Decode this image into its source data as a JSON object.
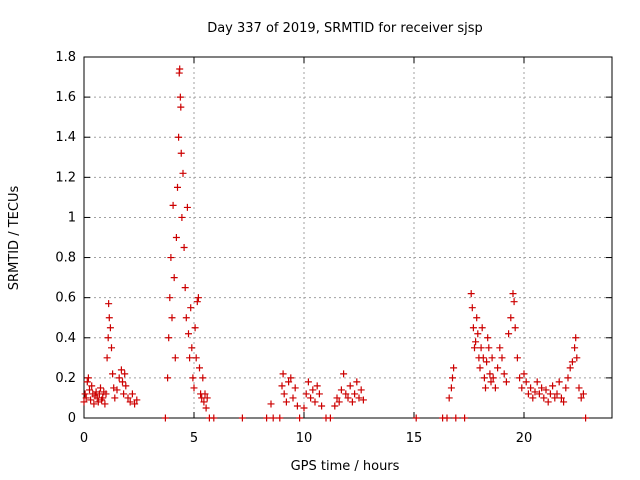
{
  "chart_data": {
    "type": "scatter",
    "title": "Day 337 of 2019, SRMTID for receiver sjsp",
    "xlabel": "GPS time / hours",
    "ylabel": "SRMTID / TECUs",
    "xlim": [
      0,
      24
    ],
    "ylim": [
      0,
      1.8
    ],
    "xticks": [
      0,
      5,
      10,
      15,
      20
    ],
    "yticks": [
      0,
      0.2,
      0.4,
      0.6,
      0.8,
      1,
      1.2,
      1.4,
      1.6,
      1.8
    ],
    "xtick_labels": [
      "0",
      "5",
      "10",
      "15",
      "20"
    ],
    "ytick_labels": [
      "0",
      "0.2",
      "0.4",
      "0.6",
      "0.8",
      "1",
      "1.2",
      "1.4",
      "1.6",
      "1.8"
    ],
    "grid": true,
    "marker": "+",
    "series": [
      {
        "name": "SRMTID",
        "color": "#cc0000",
        "points": [
          [
            0.0,
            0.08
          ],
          [
            0.05,
            0.12
          ],
          [
            0.1,
            0.1
          ],
          [
            0.15,
            0.18
          ],
          [
            0.2,
            0.2
          ],
          [
            0.25,
            0.14
          ],
          [
            0.3,
            0.09
          ],
          [
            0.35,
            0.16
          ],
          [
            0.4,
            0.12
          ],
          [
            0.45,
            0.07
          ],
          [
            0.5,
            0.11
          ],
          [
            0.55,
            0.13
          ],
          [
            0.6,
            0.1
          ],
          [
            0.65,
            0.08
          ],
          [
            0.7,
            0.12
          ],
          [
            0.75,
            0.15
          ],
          [
            0.8,
            0.09
          ],
          [
            0.85,
            0.1
          ],
          [
            0.9,
            0.13
          ],
          [
            0.95,
            0.07
          ],
          [
            1.0,
            0.12
          ],
          [
            1.05,
            0.3
          ],
          [
            1.1,
            0.4
          ],
          [
            1.12,
            0.57
          ],
          [
            1.15,
            0.5
          ],
          [
            1.2,
            0.45
          ],
          [
            1.25,
            0.35
          ],
          [
            1.3,
            0.22
          ],
          [
            1.35,
            0.15
          ],
          [
            1.4,
            0.1
          ],
          [
            1.5,
            0.14
          ],
          [
            1.6,
            0.2
          ],
          [
            1.7,
            0.24
          ],
          [
            1.75,
            0.18
          ],
          [
            1.8,
            0.12
          ],
          [
            1.85,
            0.22
          ],
          [
            1.9,
            0.16
          ],
          [
            2.0,
            0.1
          ],
          [
            2.1,
            0.08
          ],
          [
            2.2,
            0.12
          ],
          [
            2.3,
            0.07
          ],
          [
            2.4,
            0.09
          ],
          [
            3.7,
            0.0
          ],
          [
            3.8,
            0.2
          ],
          [
            3.85,
            0.4
          ],
          [
            3.9,
            0.6
          ],
          [
            3.95,
            0.8
          ],
          [
            4.0,
            0.5
          ],
          [
            4.05,
            1.06
          ],
          [
            4.1,
            0.7
          ],
          [
            4.15,
            0.3
          ],
          [
            4.2,
            0.9
          ],
          [
            4.25,
            1.15
          ],
          [
            4.3,
            1.4
          ],
          [
            4.33,
            1.72
          ],
          [
            4.35,
            1.74
          ],
          [
            4.38,
            1.6
          ],
          [
            4.4,
            1.55
          ],
          [
            4.42,
            1.32
          ],
          [
            4.45,
            1.0
          ],
          [
            4.5,
            1.22
          ],
          [
            4.55,
            0.85
          ],
          [
            4.6,
            0.65
          ],
          [
            4.65,
            0.5
          ],
          [
            4.7,
            1.05
          ],
          [
            4.75,
            0.42
          ],
          [
            4.8,
            0.3
          ],
          [
            4.85,
            0.55
          ],
          [
            4.9,
            0.35
          ],
          [
            4.95,
            0.2
          ],
          [
            5.0,
            0.15
          ],
          [
            5.05,
            0.45
          ],
          [
            5.1,
            0.3
          ],
          [
            5.15,
            0.58
          ],
          [
            5.2,
            0.6
          ],
          [
            5.25,
            0.25
          ],
          [
            5.3,
            0.12
          ],
          [
            5.35,
            0.1
          ],
          [
            5.4,
            0.2
          ],
          [
            5.45,
            0.08
          ],
          [
            5.5,
            0.12
          ],
          [
            5.55,
            0.05
          ],
          [
            5.6,
            0.1
          ],
          [
            5.7,
            0.0
          ],
          [
            5.9,
            0.0
          ],
          [
            7.2,
            0.0
          ],
          [
            8.3,
            0.0
          ],
          [
            8.5,
            0.07
          ],
          [
            8.6,
            0.0
          ],
          [
            8.9,
            0.0
          ],
          [
            9.0,
            0.16
          ],
          [
            9.05,
            0.22
          ],
          [
            9.1,
            0.12
          ],
          [
            9.2,
            0.08
          ],
          [
            9.3,
            0.18
          ],
          [
            9.4,
            0.2
          ],
          [
            9.5,
            0.1
          ],
          [
            9.6,
            0.15
          ],
          [
            9.7,
            0.06
          ],
          [
            9.8,
            0.0
          ],
          [
            10.0,
            0.05
          ],
          [
            10.1,
            0.12
          ],
          [
            10.2,
            0.18
          ],
          [
            10.3,
            0.1
          ],
          [
            10.4,
            0.14
          ],
          [
            10.5,
            0.08
          ],
          [
            10.6,
            0.16
          ],
          [
            10.7,
            0.12
          ],
          [
            10.8,
            0.06
          ],
          [
            11.0,
            0.0
          ],
          [
            11.2,
            0.0
          ],
          [
            11.4,
            0.06
          ],
          [
            11.5,
            0.1
          ],
          [
            11.6,
            0.08
          ],
          [
            11.7,
            0.14
          ],
          [
            11.8,
            0.22
          ],
          [
            11.9,
            0.12
          ],
          [
            12.0,
            0.1
          ],
          [
            12.1,
            0.16
          ],
          [
            12.2,
            0.08
          ],
          [
            12.3,
            0.12
          ],
          [
            12.4,
            0.18
          ],
          [
            12.5,
            0.1
          ],
          [
            12.6,
            0.14
          ],
          [
            12.7,
            0.09
          ],
          [
            15.1,
            0.0
          ],
          [
            16.3,
            0.0
          ],
          [
            16.5,
            0.0
          ],
          [
            16.6,
            0.1
          ],
          [
            16.7,
            0.15
          ],
          [
            16.75,
            0.2
          ],
          [
            16.8,
            0.25
          ],
          [
            16.9,
            0.0
          ],
          [
            17.3,
            0.0
          ],
          [
            17.6,
            0.62
          ],
          [
            17.65,
            0.55
          ],
          [
            17.7,
            0.45
          ],
          [
            17.75,
            0.35
          ],
          [
            17.8,
            0.38
          ],
          [
            17.85,
            0.5
          ],
          [
            17.9,
            0.42
          ],
          [
            17.95,
            0.3
          ],
          [
            18.0,
            0.25
          ],
          [
            18.05,
            0.35
          ],
          [
            18.1,
            0.45
          ],
          [
            18.15,
            0.3
          ],
          [
            18.2,
            0.2
          ],
          [
            18.25,
            0.15
          ],
          [
            18.3,
            0.28
          ],
          [
            18.35,
            0.4
          ],
          [
            18.4,
            0.35
          ],
          [
            18.45,
            0.22
          ],
          [
            18.5,
            0.18
          ],
          [
            18.55,
            0.3
          ],
          [
            18.6,
            0.2
          ],
          [
            18.7,
            0.15
          ],
          [
            18.8,
            0.25
          ],
          [
            18.9,
            0.35
          ],
          [
            19.0,
            0.3
          ],
          [
            19.1,
            0.22
          ],
          [
            19.2,
            0.18
          ],
          [
            19.3,
            0.42
          ],
          [
            19.4,
            0.5
          ],
          [
            19.5,
            0.62
          ],
          [
            19.55,
            0.58
          ],
          [
            19.6,
            0.45
          ],
          [
            19.7,
            0.3
          ],
          [
            19.8,
            0.2
          ],
          [
            19.9,
            0.15
          ],
          [
            20.0,
            0.22
          ],
          [
            20.1,
            0.18
          ],
          [
            20.2,
            0.12
          ],
          [
            20.3,
            0.15
          ],
          [
            20.4,
            0.1
          ],
          [
            20.5,
            0.13
          ],
          [
            20.6,
            0.18
          ],
          [
            20.7,
            0.12
          ],
          [
            20.8,
            0.15
          ],
          [
            20.9,
            0.1
          ],
          [
            21.0,
            0.14
          ],
          [
            21.1,
            0.08
          ],
          [
            21.2,
            0.12
          ],
          [
            21.3,
            0.16
          ],
          [
            21.4,
            0.1
          ],
          [
            21.5,
            0.12
          ],
          [
            21.6,
            0.18
          ],
          [
            21.7,
            0.1
          ],
          [
            21.8,
            0.08
          ],
          [
            21.9,
            0.15
          ],
          [
            22.0,
            0.2
          ],
          [
            22.1,
            0.25
          ],
          [
            22.2,
            0.28
          ],
          [
            22.3,
            0.35
          ],
          [
            22.35,
            0.4
          ],
          [
            22.4,
            0.3
          ],
          [
            22.5,
            0.15
          ],
          [
            22.6,
            0.1
          ],
          [
            22.7,
            0.12
          ],
          [
            22.8,
            0.0
          ]
        ]
      }
    ]
  }
}
